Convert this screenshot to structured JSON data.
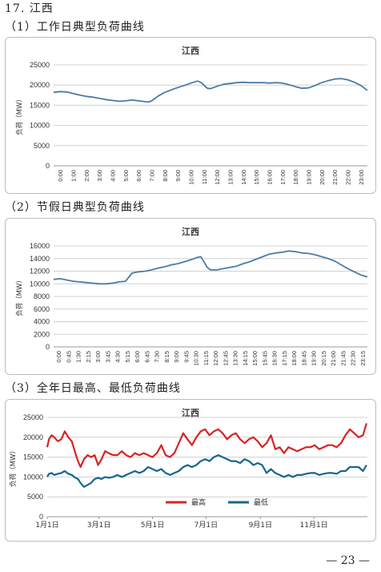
{
  "section_title": "17. 江西",
  "sub1": "（1）工作日典型负荷曲线",
  "sub2": "（2）节假日典型负荷曲线",
  "sub3": "（3）全年日最高、最低负荷曲线",
  "page_number": "— 23 —",
  "chart_data": [
    {
      "type": "line",
      "title": "江西",
      "ylabel": "负荷（MW）",
      "ylim": [
        0,
        25000
      ],
      "yticks": [
        0,
        5000,
        10000,
        15000,
        20000,
        25000
      ],
      "grid": true,
      "color": "#4a7ba6",
      "xticks": [
        "0:00",
        "1:00",
        "2:00",
        "3:00",
        "4:00",
        "5:00",
        "6:00",
        "7:00",
        "8:00",
        "9:00",
        "10:00",
        "11:00",
        "12:00",
        "13:00",
        "14:00",
        "15:00",
        "16:00",
        "17:00",
        "18:00",
        "19:00",
        "20:00",
        "21:00",
        "22:00",
        "23:00"
      ],
      "x": [
        0,
        0.5,
        1,
        1.5,
        2,
        2.5,
        3,
        3.5,
        4,
        4.5,
        5,
        5.5,
        6,
        6.5,
        7,
        7.25,
        7.5,
        8,
        8.5,
        9,
        9.5,
        10,
        10.5,
        11,
        11.25,
        11.5,
        11.75,
        12,
        12.5,
        13,
        13.5,
        14,
        14.5,
        15,
        15.5,
        16,
        16.5,
        17,
        17.5,
        18,
        18.5,
        19,
        19.5,
        20,
        20.5,
        21,
        21.5,
        22,
        22.5,
        23,
        23.5,
        24
      ],
      "values": [
        18200,
        18400,
        18300,
        17900,
        17500,
        17200,
        17000,
        16700,
        16400,
        16200,
        16000,
        16100,
        16300,
        16100,
        15900,
        15800,
        16100,
        17300,
        18200,
        18800,
        19400,
        19900,
        20500,
        21000,
        20700,
        20000,
        19200,
        19100,
        19700,
        20200,
        20400,
        20600,
        20700,
        20600,
        20600,
        20600,
        20500,
        20600,
        20500,
        20100,
        19600,
        19200,
        19300,
        19900,
        20600,
        21100,
        21500,
        21600,
        21300,
        20700,
        19900,
        18700
      ]
    },
    {
      "type": "line",
      "title": "江西",
      "ylabel": "负荷（MW）",
      "ylim": [
        0,
        16000
      ],
      "yticks": [
        0,
        2000,
        4000,
        6000,
        8000,
        10000,
        12000,
        14000,
        16000
      ],
      "grid": true,
      "color": "#4a7ba6",
      "xticks": [
        "0:00",
        "0:45",
        "1:30",
        "2:15",
        "3:00",
        "3:45",
        "4:30",
        "5:15",
        "6:00",
        "6:45",
        "7:30",
        "8:15",
        "9:00",
        "9:45",
        "10:30",
        "11:15",
        "12:00",
        "12:45",
        "13:30",
        "14:15",
        "15:00",
        "15:45",
        "16:30",
        "17:15",
        "18:00",
        "18:45",
        "19:30",
        "20:15",
        "21:00",
        "21:45",
        "22:30",
        "23:15"
      ],
      "x": [
        0,
        0.5,
        1,
        1.5,
        2,
        2.5,
        3,
        3.5,
        4,
        4.5,
        5,
        5.5,
        6,
        6.5,
        7,
        7.5,
        8,
        8.5,
        9,
        9.5,
        10,
        10.5,
        11,
        11.25,
        11.5,
        11.75,
        12,
        12.5,
        13,
        13.5,
        14,
        14.5,
        15,
        15.5,
        16,
        16.5,
        17,
        17.5,
        18,
        18.5,
        19,
        19.5,
        20,
        20.5,
        21,
        21.5,
        22,
        22.5,
        23,
        23.5,
        24
      ],
      "values": [
        10700,
        10800,
        10600,
        10400,
        10300,
        10200,
        10100,
        10000,
        10000,
        10100,
        10300,
        10400,
        11700,
        11900,
        12000,
        12200,
        12500,
        12700,
        13000,
        13200,
        13500,
        13800,
        14200,
        14300,
        13500,
        12600,
        12200,
        12200,
        12400,
        12600,
        12800,
        13200,
        13500,
        13900,
        14300,
        14700,
        14900,
        15000,
        15200,
        15100,
        14900,
        14800,
        14600,
        14300,
        14000,
        13600,
        13000,
        12400,
        11900,
        11400,
        11100
      ]
    },
    {
      "type": "line",
      "title": "江西",
      "ylabel": "负荷（MW）",
      "ylim": [
        0,
        25000
      ],
      "yticks": [
        0,
        5000,
        10000,
        15000,
        20000,
        25000
      ],
      "grid": true,
      "xticks": [
        "1月1日",
        "3月1日",
        "5月1日",
        "7月1日",
        "9月1日",
        "11月1日"
      ],
      "xtick_days": [
        0,
        59,
        120,
        181,
        243,
        304
      ],
      "legend_position": "bottom-center",
      "series": [
        {
          "name": "最高",
          "color": "#d62424",
          "days": [
            0,
            2,
            5,
            8,
            12,
            16,
            20,
            24,
            28,
            32,
            35,
            38,
            42,
            46,
            50,
            54,
            58,
            62,
            66,
            70,
            75,
            80,
            85,
            90,
            95,
            100,
            105,
            110,
            115,
            120,
            125,
            130,
            135,
            140,
            145,
            150,
            155,
            160,
            165,
            170,
            175,
            180,
            185,
            190,
            195,
            200,
            205,
            210,
            215,
            220,
            225,
            230,
            235,
            240,
            245,
            250,
            255,
            260,
            265,
            270,
            275,
            280,
            285,
            290,
            295,
            300,
            305,
            310,
            315,
            320,
            325,
            330,
            335,
            340,
            345,
            350,
            355,
            360,
            364
          ],
          "values": [
            17500,
            19500,
            20500,
            20000,
            19000,
            19500,
            21500,
            20000,
            19000,
            16000,
            14000,
            12500,
            14500,
            15500,
            15000,
            15500,
            13000,
            14500,
            16500,
            16000,
            15500,
            15500,
            16500,
            15500,
            15000,
            16000,
            15500,
            16000,
            15500,
            15000,
            16000,
            18000,
            15500,
            15000,
            16000,
            18500,
            21000,
            19500,
            18000,
            20000,
            21500,
            22000,
            20500,
            21500,
            22000,
            21000,
            19500,
            20500,
            21000,
            19500,
            18500,
            19500,
            20000,
            19000,
            17500,
            18500,
            20500,
            17000,
            17500,
            16000,
            17500,
            17000,
            16500,
            17000,
            17500,
            17500,
            18000,
            17000,
            17500,
            18000,
            18000,
            17500,
            18500,
            20500,
            22000,
            21000,
            20000,
            20500,
            23500
          ]
        },
        {
          "name": "最低",
          "color": "#17668c",
          "days": [
            0,
            2,
            5,
            8,
            12,
            16,
            20,
            24,
            28,
            32,
            35,
            38,
            42,
            46,
            50,
            54,
            58,
            62,
            66,
            70,
            75,
            80,
            85,
            90,
            95,
            100,
            105,
            110,
            115,
            120,
            125,
            130,
            135,
            140,
            145,
            150,
            155,
            160,
            165,
            170,
            175,
            180,
            185,
            190,
            195,
            200,
            205,
            210,
            215,
            220,
            225,
            230,
            235,
            240,
            245,
            250,
            255,
            260,
            265,
            270,
            275,
            280,
            285,
            290,
            295,
            300,
            305,
            310,
            315,
            320,
            325,
            330,
            335,
            340,
            345,
            350,
            355,
            360,
            364
          ],
          "values": [
            10000,
            10800,
            11000,
            10500,
            10800,
            11000,
            11500,
            10800,
            10500,
            9800,
            9500,
            8500,
            7500,
            8000,
            8500,
            9500,
            9800,
            9500,
            10000,
            9800,
            10000,
            10500,
            10000,
            10500,
            11000,
            11500,
            11000,
            11500,
            12500,
            12000,
            11500,
            12000,
            11000,
            10500,
            11000,
            11500,
            12500,
            13000,
            12500,
            13000,
            14000,
            14500,
            14000,
            15000,
            15500,
            15000,
            14500,
            14000,
            14000,
            13500,
            14500,
            14000,
            13000,
            13500,
            13000,
            11000,
            12000,
            11000,
            10500,
            10000,
            10500,
            10000,
            10500,
            10500,
            10800,
            11000,
            11000,
            10500,
            10800,
            11000,
            11000,
            10800,
            11500,
            11500,
            12500,
            12500,
            12500,
            11500,
            13000
          ]
        }
      ]
    }
  ]
}
